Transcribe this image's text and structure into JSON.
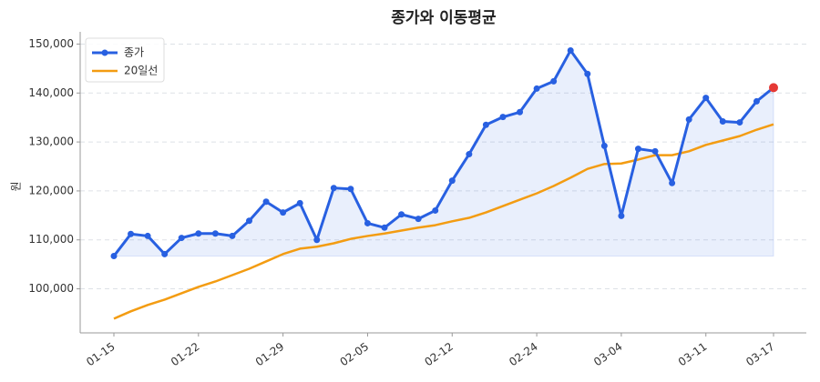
{
  "chart_data": {
    "type": "line",
    "title": "종가와 이동평균",
    "y_label": "원",
    "categories": [
      "01-15",
      null,
      null,
      null,
      null,
      "01-22",
      null,
      null,
      null,
      null,
      "01-29",
      null,
      null,
      null,
      null,
      "02-05",
      null,
      null,
      null,
      null,
      "02-12",
      null,
      null,
      null,
      null,
      "02-24",
      null,
      null,
      null,
      null,
      "03-04",
      null,
      null,
      null,
      null,
      "03-11",
      null,
      null,
      null,
      "03-17"
    ],
    "series": [
      {
        "name": "종가",
        "color": "#2860e1",
        "markers": true,
        "fill": true,
        "values": [
          106700,
          111200,
          110800,
          107100,
          110400,
          111300,
          111300,
          110800,
          113900,
          117800,
          115600,
          117500,
          110000,
          120600,
          120400,
          113400,
          112500,
          115200,
          114300,
          116000,
          122100,
          127500,
          133500,
          135100,
          136100,
          140900,
          142400,
          148700,
          143900,
          129200,
          114900,
          128600,
          128100,
          121600,
          134600,
          139000,
          134200,
          134000,
          138300,
          141100
        ]
      },
      {
        "name": "20일선",
        "color": "#f39c12",
        "markers": false,
        "fill": false,
        "values": [
          93900,
          95400,
          96700,
          97800,
          99100,
          100400,
          101500,
          102800,
          104100,
          105600,
          107100,
          108200,
          108600,
          109300,
          110200,
          110800,
          111300,
          111900,
          112500,
          113000,
          113800,
          114500,
          115600,
          116900,
          118200,
          119500,
          121000,
          122700,
          124500,
          125500,
          125600,
          126400,
          127300,
          127300,
          128100,
          129400,
          130300,
          131200,
          132500,
          133600
        ]
      }
    ],
    "highlight_last_color": "#e53935",
    "ylim": [
      91000,
      152500
    ],
    "yticks": [
      {
        "value": 100000,
        "label": "100,000"
      },
      {
        "value": 110000,
        "label": "110,000"
      },
      {
        "value": 120000,
        "label": "120,000"
      },
      {
        "value": 130000,
        "label": "130,000"
      },
      {
        "value": 140000,
        "label": "140,000"
      },
      {
        "value": 150000,
        "label": "150,000"
      }
    ],
    "grid": true,
    "legend": "upper-left"
  }
}
